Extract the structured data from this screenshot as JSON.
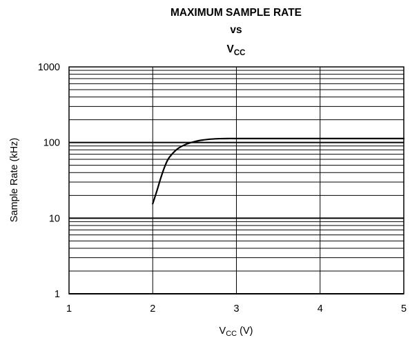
{
  "chart_data": {
    "type": "line",
    "title_lines": [
      "MAXIMUM SAMPLE RATE",
      "vs"
    ],
    "title_var": {
      "main": "V",
      "sub": "CC"
    },
    "xlabel": {
      "main": "V",
      "sub": "CC",
      "unit": " (V)"
    },
    "ylabel": "Sample Rate (kHz)",
    "xlim": [
      1,
      5
    ],
    "ylim": [
      1,
      1000
    ],
    "yscale": "log",
    "grid": true,
    "xticks": [
      "1",
      "2",
      "3",
      "4",
      "5"
    ],
    "yticks": [
      "1",
      "10",
      "100",
      "1000"
    ],
    "series": [
      {
        "x": [
          2.0,
          2.05,
          2.1,
          2.15,
          2.2,
          2.3,
          2.4,
          2.5,
          2.6,
          2.7,
          2.8,
          2.9,
          3.0,
          3.5,
          4.0,
          4.5,
          5.0
        ],
        "y": [
          15.5,
          23,
          35,
          50,
          64,
          83,
          95,
          103,
          108,
          111,
          112.5,
          113,
          113,
          113,
          113,
          113,
          113
        ]
      }
    ],
    "colors": {
      "line": "#000000",
      "grid": "#000000",
      "background": "#ffffff"
    }
  }
}
